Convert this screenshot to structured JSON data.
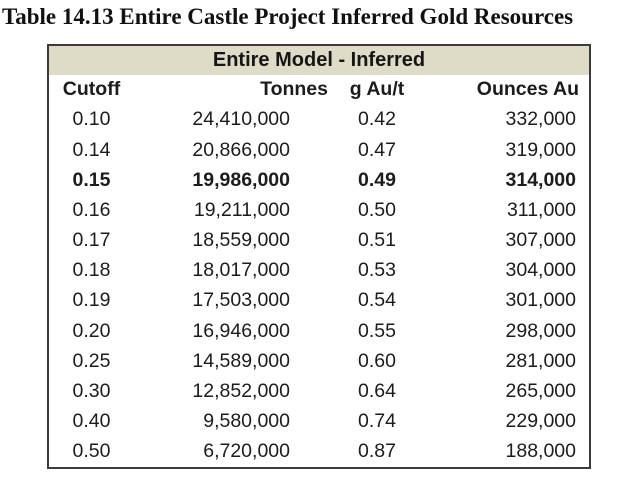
{
  "title": "Table 14.13 Entire Castle Project Inferred Gold Resources",
  "table": {
    "header": "Entire Model - Inferred",
    "columns": [
      "Cutoff",
      "Tonnes",
      "g Au/t",
      "Ounces Au"
    ],
    "rows": [
      {
        "cutoff": "0.10",
        "tonnes": "24,410,000",
        "grade": "0.42",
        "ounces": "332,000",
        "bold": false
      },
      {
        "cutoff": "0.14",
        "tonnes": "20,866,000",
        "grade": "0.47",
        "ounces": "319,000",
        "bold": false
      },
      {
        "cutoff": "0.15",
        "tonnes": "19,986,000",
        "grade": "0.49",
        "ounces": "314,000",
        "bold": true
      },
      {
        "cutoff": "0.16",
        "tonnes": "19,211,000",
        "grade": "0.50",
        "ounces": "311,000",
        "bold": false
      },
      {
        "cutoff": "0.17",
        "tonnes": "18,559,000",
        "grade": "0.51",
        "ounces": "307,000",
        "bold": false
      },
      {
        "cutoff": "0.18",
        "tonnes": "18,017,000",
        "grade": "0.53",
        "ounces": "304,000",
        "bold": false
      },
      {
        "cutoff": "0.19",
        "tonnes": "17,503,000",
        "grade": "0.54",
        "ounces": "301,000",
        "bold": false
      },
      {
        "cutoff": "0.20",
        "tonnes": "16,946,000",
        "grade": "0.55",
        "ounces": "298,000",
        "bold": false
      },
      {
        "cutoff": "0.25",
        "tonnes": "14,589,000",
        "grade": "0.60",
        "ounces": "281,000",
        "bold": false
      },
      {
        "cutoff": "0.30",
        "tonnes": "12,852,000",
        "grade": "0.64",
        "ounces": "265,000",
        "bold": false
      },
      {
        "cutoff": "0.40",
        "tonnes": "9,580,000",
        "grade": "0.74",
        "ounces": "229,000",
        "bold": false
      },
      {
        "cutoff": "0.50",
        "tonnes": "6,720,000",
        "grade": "0.87",
        "ounces": "188,000",
        "bold": false
      }
    ],
    "colors": {
      "header_bg": "#dedbc6",
      "border": "#3b3b3b",
      "text": "#1c1c1c"
    }
  }
}
